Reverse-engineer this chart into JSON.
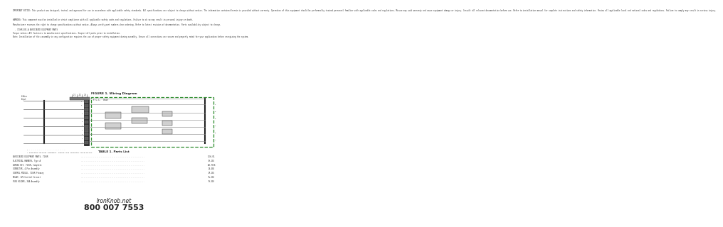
{
  "bg_color": "#ffffff",
  "text_color": "#333333",
  "dark_color": "#222222",
  "line_color": "#555555",
  "gray_color": "#888888",
  "green_box_color": "#2d8c2d",
  "contact_line1": "IronKnob.net",
  "contact_line2": "800 007 7553",
  "fig_title": "FIGURE 1. Wiring Diagram",
  "table_title": "TABLE 1. Parts List",
  "top_para1": "IMPORTANT NOTICE: This product was designed, tested, and approved for use in accordance with applicable safety standards. All specifications are subject to change without notice. The information contained herein is provided without warranty. Operation of this equipment should be performed by trained personnel familiar with applicable codes and regulations. Misuse may void warranty and cause equipment damage or injury. Consult all relevant documentation before use. Refer to installation manual for complete instructions and safety information. Review all applicable local and national codes and regulations. Failure to comply may result in serious injury.",
  "top_para2": "WARNING: This component must be installed in strict compliance with all applicable safety codes and regulations. Failure to do so may result in personal injury or death.",
  "top_para3": "Manufacturer reserves the right to change specifications without notice. Always verify part numbers when ordering. Refer to latest revision of documentation. Parts availability subject to change.",
  "top_para4": "  - 7136R-001-A ASSOCIATED EQUIPMENT PARTS\nTorque values: All fasteners to manufacturer specifications. Inspect all parts prior to installation.",
  "top_para5": "Note: Installation of this assembly in any configuration requires the use of proper safety equipment during assembly. Ensure all connections are secure and properly rated for your application before energizing the system."
}
